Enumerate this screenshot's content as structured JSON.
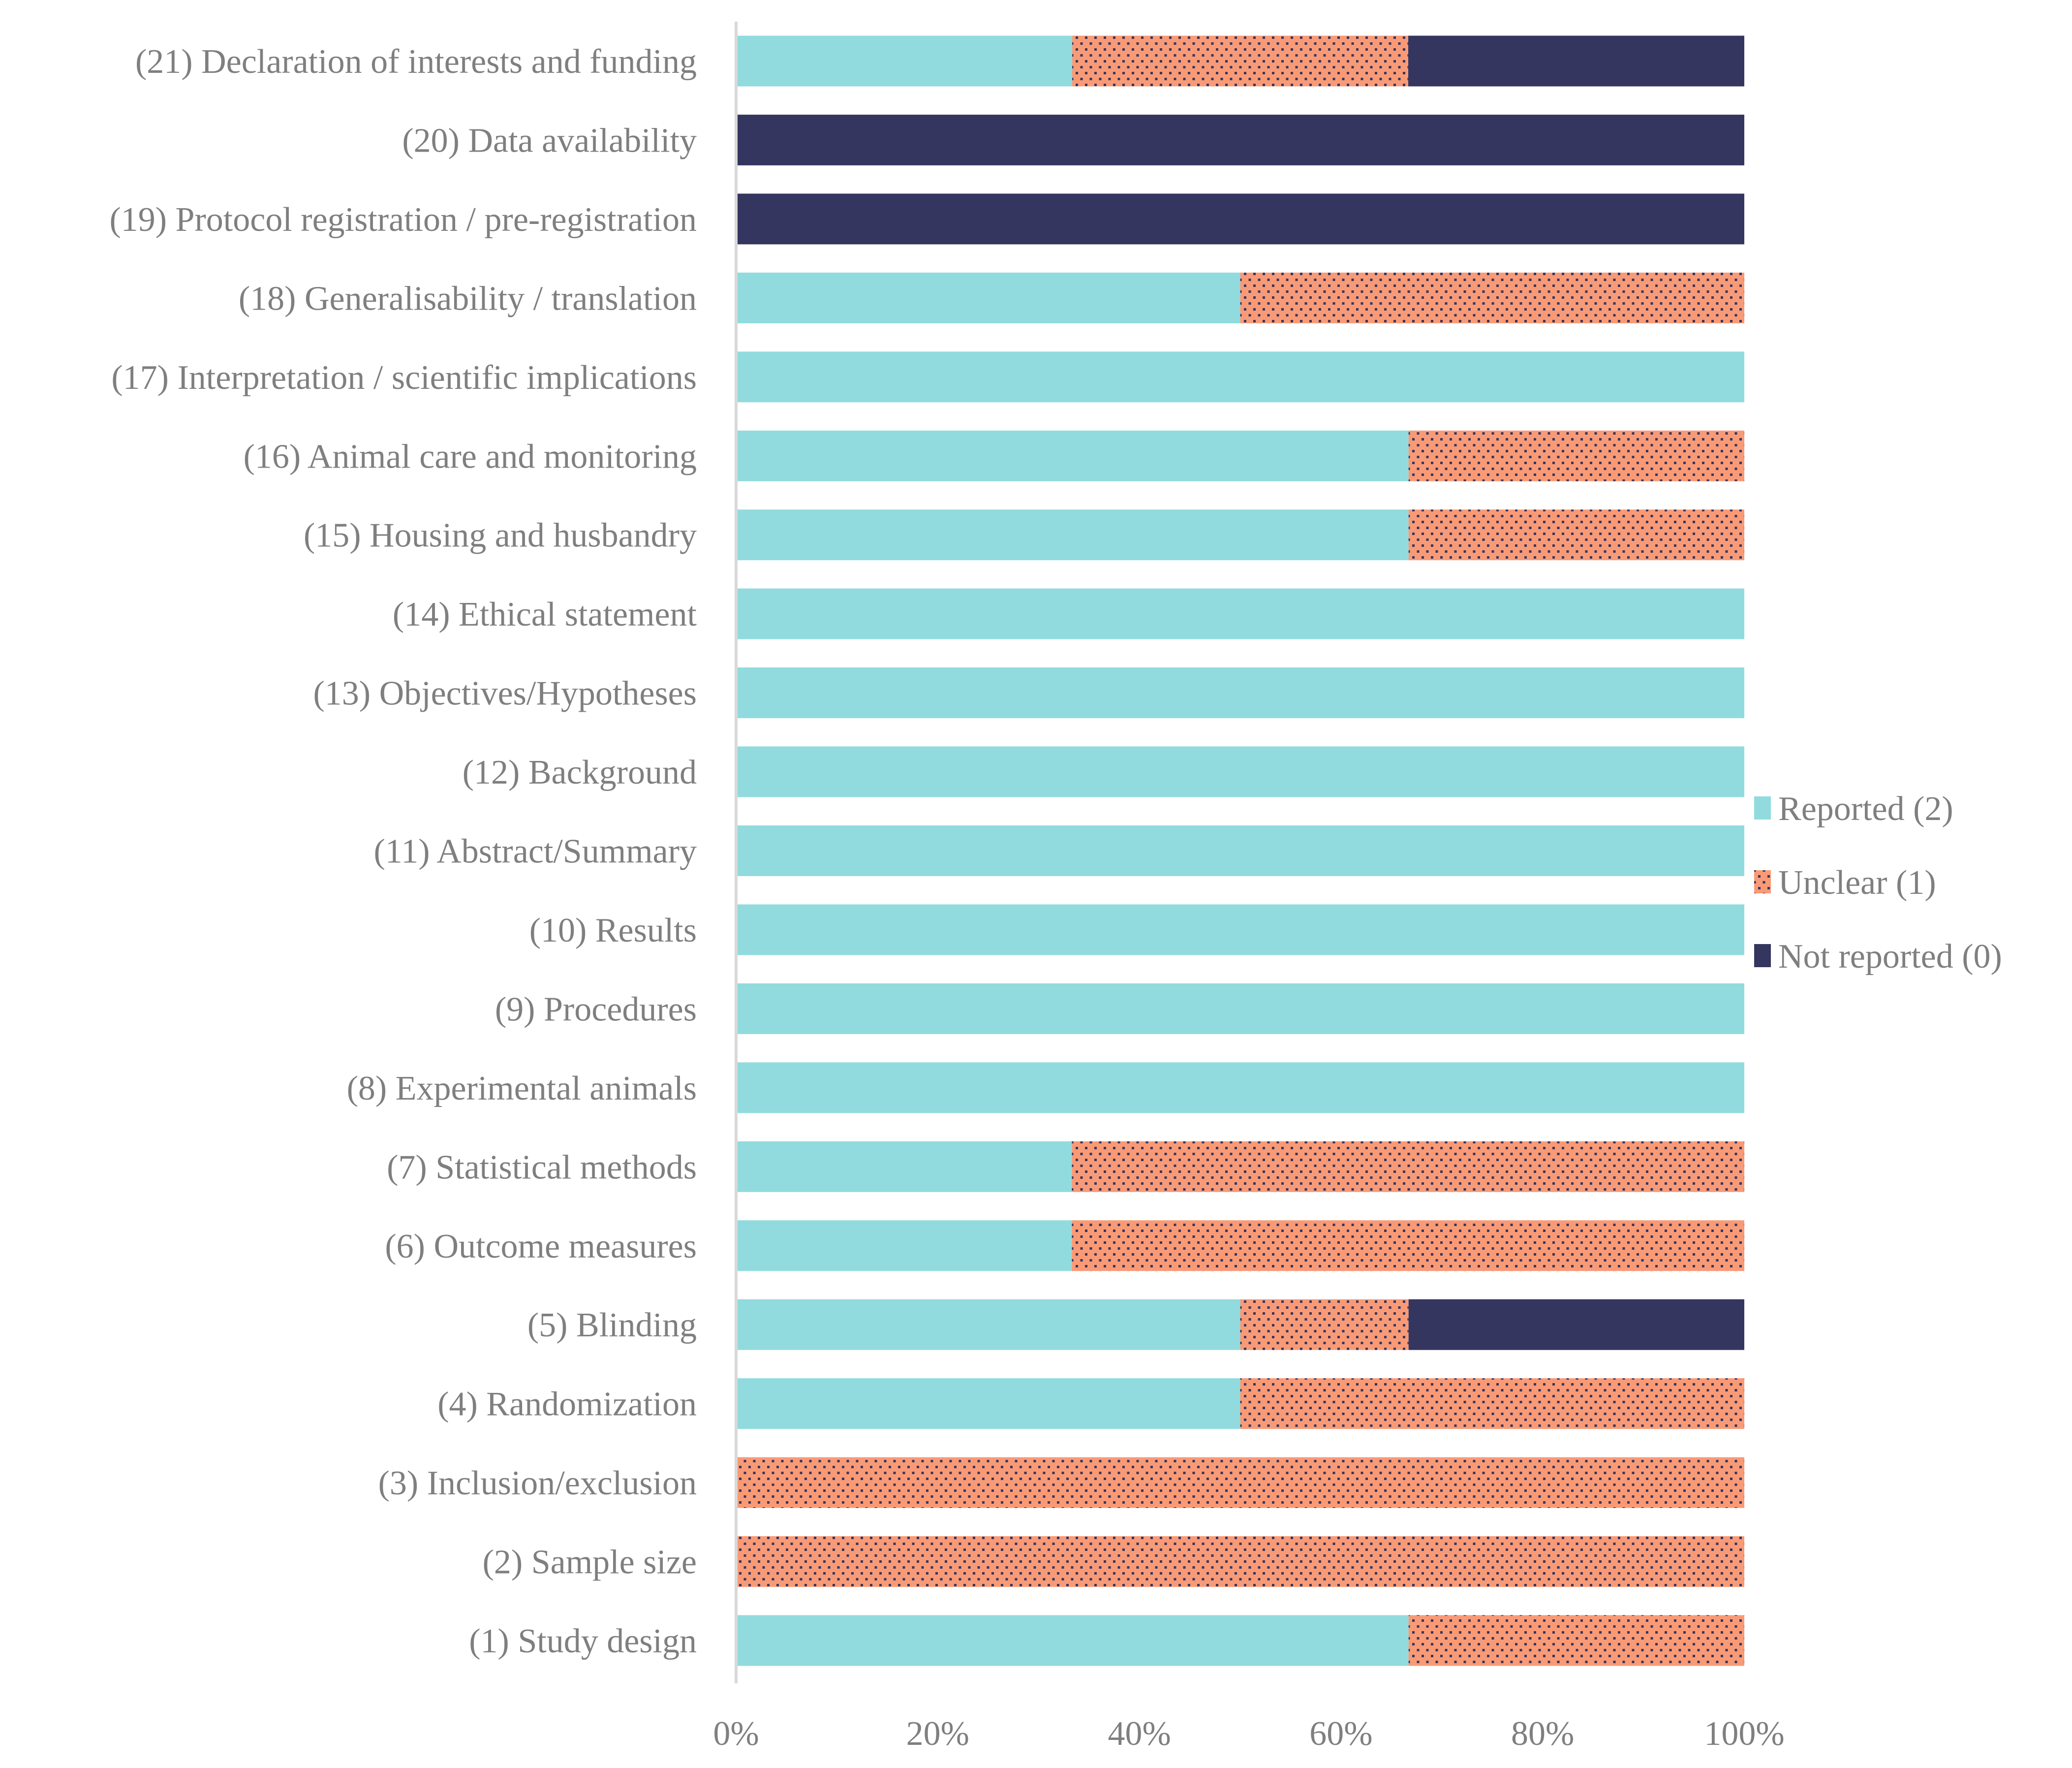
{
  "chart_data": {
    "type": "bar",
    "orientation": "horizontal",
    "stacked": "percent",
    "title": "",
    "xlabel": "",
    "ylabel": "",
    "xlim": [
      0,
      100
    ],
    "x_ticks": [
      "0%",
      "20%",
      "40%",
      "60%",
      "80%",
      "100%"
    ],
    "grid": false,
    "legend_position": "right",
    "categories": [
      "(21) Declaration of interests and funding",
      "(20) Data availability",
      "(19) Protocol registration / pre-registration",
      "(18) Generalisability / translation",
      "(17) Interpretation / scientific implications",
      "(16) Animal care and monitoring",
      "(15) Housing and husbandry",
      "(14) Ethical statement",
      "(13) Objectives/Hypotheses",
      "(12) Background",
      "(11) Abstract/Summary",
      "(10) Results",
      "(9) Procedures",
      "(8) Experimental animals",
      "(7) Statistical methods",
      "(6) Outcome measures",
      "(5) Blinding",
      "(4) Randomization",
      "(3) Inclusion/exclusion",
      "(2) Sample size",
      "(1) Study design"
    ],
    "series": [
      {
        "name": "Reported (2)",
        "color": "#91dbde",
        "pattern": "solid",
        "values": [
          33.3,
          0,
          0,
          50,
          100,
          66.7,
          66.7,
          100,
          100,
          100,
          100,
          100,
          100,
          100,
          33.3,
          33.3,
          50,
          50,
          0,
          0,
          66.7
        ]
      },
      {
        "name": "Unclear (1)",
        "color": "#f99a76",
        "pattern": "dots",
        "values": [
          33.3,
          0,
          0,
          50,
          0,
          33.3,
          33.3,
          0,
          0,
          0,
          0,
          0,
          0,
          0,
          66.7,
          66.7,
          16.7,
          50,
          100,
          100,
          33.3
        ]
      },
      {
        "name": "Not reported (0)",
        "color": "#35365f",
        "pattern": "solid",
        "values": [
          33.3,
          100,
          100,
          0,
          0,
          0,
          0,
          0,
          0,
          0,
          0,
          0,
          0,
          0,
          0,
          0,
          33.3,
          0,
          0,
          0,
          0
        ]
      }
    ]
  }
}
